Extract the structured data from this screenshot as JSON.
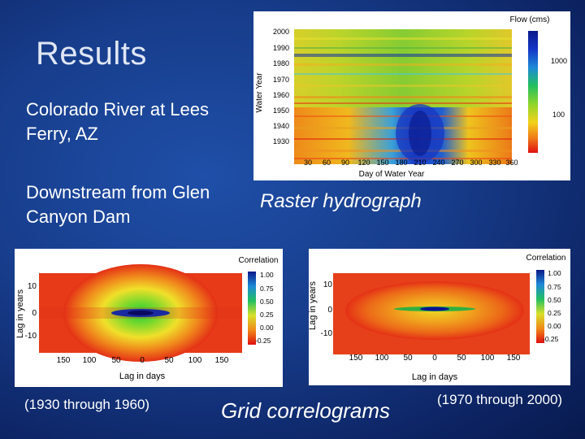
{
  "slide": {
    "title": "Results",
    "bullets": [
      "Colorado River at Lees Ferry, AZ",
      "Downstream from Glen Canyon Dam"
    ],
    "raster_caption": "Raster hydrograph",
    "grid_caption": "Grid correlograms",
    "left_period": "(1930 through 1960)",
    "right_period": "(1970 through 2000)"
  },
  "raster": {
    "ylabel": "Water Year",
    "xlabel": "Day of Water Year",
    "year_ticks": [
      "2000",
      "1990",
      "1980",
      "1970",
      "1960",
      "1950",
      "1940",
      "1930"
    ],
    "day_ticks": [
      "30",
      "60",
      "90",
      "120",
      "150",
      "180",
      "210",
      "240",
      "270",
      "300",
      "330",
      "360"
    ],
    "legend_title": "Flow (cms)",
    "legend_ticks": [
      "1000",
      "100"
    ]
  },
  "correlogram_left": {
    "legend_title": "Correlation",
    "ylabel": "Lag in years",
    "xlabel": "Lag in days",
    "y_ticks": [
      "10",
      "0",
      "-10"
    ],
    "x_ticks": [
      "150",
      "100",
      "50",
      "0",
      "50",
      "100",
      "150"
    ],
    "legend_ticks": [
      "1.00",
      "0.75",
      "0.50",
      "0.25",
      "0.00",
      "-0.25"
    ]
  },
  "correlogram_right": {
    "legend_title": "Correlation",
    "ylabel": "Lag in years",
    "xlabel": "Lag in days",
    "y_ticks": [
      "10",
      "0",
      "-10"
    ],
    "x_ticks": [
      "150",
      "100",
      "50",
      "0",
      "50",
      "100",
      "150"
    ],
    "legend_ticks": [
      "1.00",
      "0.75",
      "0.50",
      "0.25",
      "0.00",
      "-0.25"
    ]
  },
  "colors": {
    "background": "#173c8a",
    "title": "#dfe6f5"
  }
}
